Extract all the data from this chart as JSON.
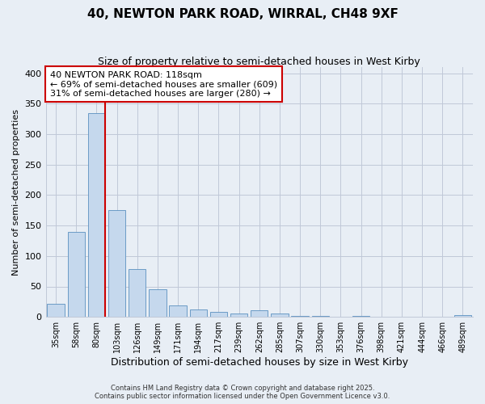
{
  "title": "40, NEWTON PARK ROAD, WIRRAL, CH48 9XF",
  "subtitle": "Size of property relative to semi-detached houses in West Kirby",
  "xlabel": "Distribution of semi-detached houses by size in West Kirby",
  "ylabel": "Number of semi-detached properties",
  "bar_labels": [
    "35sqm",
    "58sqm",
    "80sqm",
    "103sqm",
    "126sqm",
    "149sqm",
    "171sqm",
    "194sqm",
    "217sqm",
    "239sqm",
    "262sqm",
    "285sqm",
    "307sqm",
    "330sqm",
    "353sqm",
    "376sqm",
    "398sqm",
    "421sqm",
    "444sqm",
    "466sqm",
    "489sqm"
  ],
  "bar_values": [
    22,
    140,
    335,
    175,
    78,
    46,
    19,
    12,
    8,
    5,
    11,
    5,
    1,
    1,
    0,
    1,
    0,
    0,
    0,
    0,
    3
  ],
  "bar_color": "#c5d8ed",
  "bar_edge_color": "#5a90c0",
  "annotation_line1": "40 NEWTON PARK ROAD: 118sqm",
  "annotation_line2": "← 69% of semi-detached houses are smaller (609)",
  "annotation_line3": "31% of semi-detached houses are larger (280) →",
  "vline_after_bar": 2,
  "ylim": [
    0,
    410
  ],
  "yticks": [
    0,
    50,
    100,
    150,
    200,
    250,
    300,
    350,
    400
  ],
  "footer_line1": "Contains HM Land Registry data © Crown copyright and database right 2025.",
  "footer_line2": "Contains public sector information licensed under the Open Government Licence v3.0.",
  "background_color": "#e8eef5",
  "plot_background": "#e8eef5",
  "annotation_box_fill": "#ffffff",
  "annotation_box_edge": "#cc0000",
  "vline_color": "#cc0000",
  "title_fontsize": 11,
  "subtitle_fontsize": 9,
  "axis_label_fontsize": 9,
  "tick_fontsize": 7,
  "annotation_fontsize": 8,
  "ylabel_fontsize": 8
}
